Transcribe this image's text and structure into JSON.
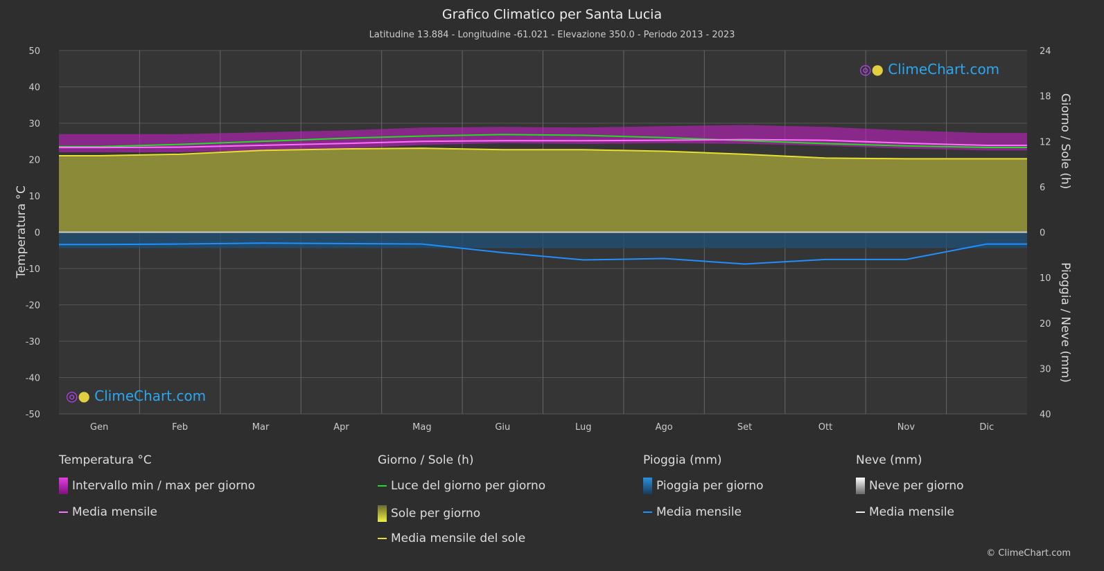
{
  "header": {
    "title": "Grafico Climatico per Santa Lucia",
    "subtitle": "Latitudine 13.884 - Longitudine -61.021 - Elevazione 350.0 - Periodo 2013 - 2023"
  },
  "logo_text": "ClimeChart.com",
  "copyright": "© ClimeChart.com",
  "chart_data": {
    "type": "line",
    "categories": [
      "Gen",
      "Feb",
      "Mar",
      "Apr",
      "Mag",
      "Giu",
      "Lug",
      "Ago",
      "Set",
      "Ott",
      "Nov",
      "Dic"
    ],
    "left_axis": {
      "label": "Temperatura °C",
      "range": [
        -50,
        50
      ],
      "ticks": [
        50,
        40,
        30,
        20,
        10,
        0,
        -10,
        -20,
        -30,
        -40,
        -50
      ]
    },
    "right_axis_top": {
      "label": "Giorno / Sole (h)",
      "range": [
        0,
        24
      ],
      "ticks": [
        24,
        18,
        12,
        6,
        0
      ]
    },
    "right_axis_bottom": {
      "label": "Pioggia / Neve (mm)",
      "range": [
        0,
        40
      ],
      "ticks": [
        0,
        10,
        20,
        30,
        40
      ]
    },
    "grid": true,
    "series": [
      {
        "name": "Intervallo min / max per giorno",
        "axis": "temp",
        "type": "band",
        "min": [
          22.0,
          22.0,
          22.5,
          23.0,
          24.0,
          24.5,
          24.3,
          24.5,
          24.3,
          23.8,
          23.0,
          22.5
        ],
        "max": [
          27.0,
          27.0,
          27.5,
          28.0,
          28.8,
          29.0,
          28.8,
          29.2,
          29.5,
          29.0,
          28.0,
          27.3
        ],
        "color": "#c020c0"
      },
      {
        "name": "Media mensile",
        "axis": "temp",
        "values": [
          23.3,
          23.4,
          23.9,
          24.4,
          25.0,
          25.2,
          25.2,
          25.3,
          25.5,
          25.3,
          24.5,
          23.9
        ],
        "color": "#ff70ff"
      },
      {
        "name": "Luce del giorno per giorno",
        "axis": "sun",
        "values": [
          11.3,
          11.6,
          12.0,
          12.4,
          12.7,
          12.9,
          12.8,
          12.5,
          12.1,
          11.7,
          11.4,
          11.2
        ],
        "color": "#22dd22"
      },
      {
        "name": "Sole per giorno",
        "axis": "sun",
        "type": "area",
        "values": [
          10.1,
          10.3,
          10.8,
          11.0,
          11.1,
          10.9,
          10.9,
          10.7,
          10.3,
          9.8,
          9.7,
          9.7
        ],
        "color": "#8a8a38"
      },
      {
        "name": "Media mensile del sole",
        "axis": "sun",
        "values": [
          10.1,
          10.3,
          10.8,
          11.0,
          11.1,
          10.9,
          10.9,
          10.7,
          10.3,
          9.8,
          9.7,
          9.7
        ],
        "color": "#e8e030"
      },
      {
        "name": "Media mensile",
        "axis": "rain",
        "values": [
          2.7,
          2.6,
          2.4,
          2.5,
          2.6,
          4.5,
          6.1,
          5.8,
          7.0,
          6.0,
          6.0,
          2.6
        ],
        "color": "#1e90ff"
      }
    ]
  },
  "legend": {
    "temp": {
      "heading": "Temperatura °C",
      "items": [
        "Intervallo min / max per giorno",
        "Media mensile"
      ]
    },
    "sun": {
      "heading": "Giorno / Sole (h)",
      "items": [
        "Luce del giorno per giorno",
        "Sole per giorno",
        "Media mensile del sole"
      ]
    },
    "rain": {
      "heading": "Pioggia (mm)",
      "items": [
        "Pioggia per giorno",
        "Media mensile"
      ]
    },
    "snow": {
      "heading": "Neve (mm)",
      "items": [
        "Neve per giorno",
        "Media mensile"
      ]
    }
  }
}
